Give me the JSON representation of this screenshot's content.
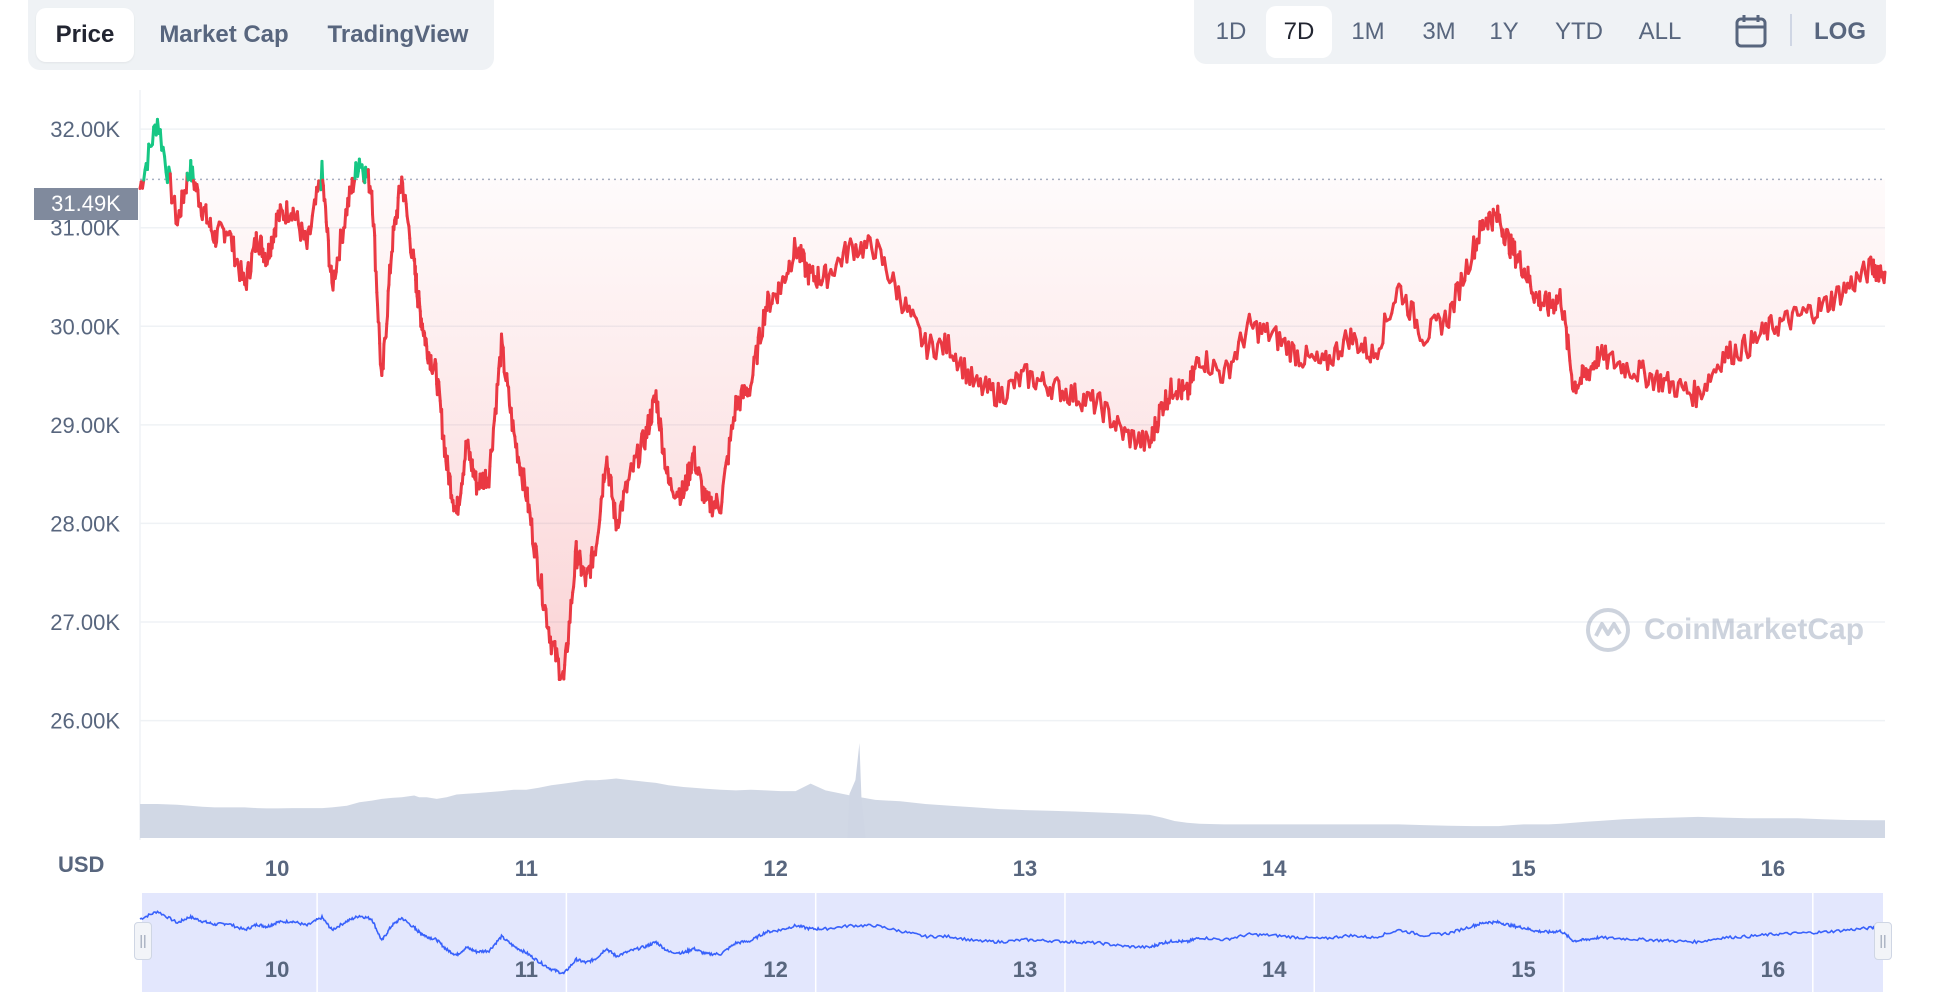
{
  "tabs": [
    {
      "label": "Price",
      "active": true
    },
    {
      "label": "Market Cap",
      "active": false
    },
    {
      "label": "TradingView",
      "active": false
    }
  ],
  "ranges": [
    {
      "label": "1D",
      "active": false
    },
    {
      "label": "7D",
      "active": true
    },
    {
      "label": "1M",
      "active": false
    },
    {
      "label": "3M",
      "active": false
    },
    {
      "label": "1Y",
      "active": false
    },
    {
      "label": "YTD",
      "active": false
    },
    {
      "label": "ALL",
      "active": false
    }
  ],
  "calendar_icon": "calendar-icon",
  "log_label": "LOG",
  "currency_label": "USD",
  "current_price_tag": "31.49K",
  "watermark": "CoinMarketCap",
  "colors": {
    "up": "#16c784",
    "down": "#ea3943",
    "volume": "#cfd6e4",
    "navigator_line": "#3861fb",
    "navigator_fill": "#e3e7fd",
    "tag_bg": "#808a9d"
  },
  "chart_data": {
    "type": "line",
    "title": "",
    "xlabel": "",
    "ylabel": "USD",
    "x_range": [
      9.45,
      16.45
    ],
    "ylim": [
      25600,
      32600
    ],
    "reference_price": 31490,
    "y_ticks": [
      "26.00K",
      "27.00K",
      "28.00K",
      "29.00K",
      "30.00K",
      "31.00K",
      "32.00K"
    ],
    "y_tick_values": [
      26000,
      27000,
      28000,
      29000,
      30000,
      31000,
      32000
    ],
    "x_ticks": [
      "10",
      "11",
      "12",
      "13",
      "14",
      "15",
      "16"
    ],
    "x_tick_values": [
      10,
      11,
      12,
      13,
      14,
      15,
      16
    ],
    "series": [
      {
        "x": [
          9.45,
          9.52,
          9.6,
          9.65,
          9.7,
          9.75,
          9.8,
          9.87,
          9.92,
          9.96,
          10.0,
          10.06,
          10.12,
          10.18,
          10.22,
          10.28,
          10.33,
          10.38,
          10.42,
          10.46,
          10.5,
          10.55,
          10.57,
          10.6,
          10.64,
          10.68,
          10.72,
          10.76,
          10.8,
          10.85,
          10.9,
          10.95,
          11.0,
          11.05,
          11.1,
          11.15,
          11.2,
          11.24,
          11.28,
          11.32,
          11.36,
          11.42,
          11.48,
          11.52,
          11.57,
          11.63,
          11.67,
          11.72,
          11.78,
          11.84,
          11.9,
          11.96,
          12.02,
          12.08,
          12.14,
          12.2,
          12.3,
          12.4,
          12.5,
          12.6,
          12.7,
          12.8,
          12.9,
          13.0,
          13.1,
          13.2,
          13.3,
          13.4,
          13.5,
          13.55,
          13.6,
          13.65,
          13.7,
          13.8,
          13.9,
          14.0,
          14.1,
          14.2,
          14.3,
          14.4,
          14.5,
          14.6,
          14.7,
          14.8,
          14.85,
          14.9,
          14.95,
          15.0,
          15.05,
          15.1,
          15.15,
          15.2,
          15.25,
          15.3,
          15.4,
          15.5,
          15.6,
          15.7,
          15.8,
          15.9,
          16.0,
          16.1,
          16.2,
          16.3,
          16.4,
          16.45
        ],
        "y": [
          31400,
          32100,
          31050,
          31600,
          31200,
          30900,
          31000,
          30400,
          30900,
          30700,
          31100,
          31200,
          30800,
          31550,
          30400,
          31200,
          31700,
          31400,
          29400,
          30800,
          31500,
          30600,
          30200,
          29800,
          29500,
          28600,
          28100,
          28800,
          28400,
          28500,
          29800,
          28900,
          28300,
          27500,
          26800,
          26400,
          27700,
          27400,
          27800,
          28700,
          28000,
          28500,
          28900,
          29300,
          28400,
          28300,
          28700,
          28200,
          28200,
          29200,
          29400,
          30200,
          30400,
          30800,
          30500,
          30500,
          30800,
          30800,
          30300,
          29800,
          29800,
          29400,
          29300,
          29500,
          29400,
          29300,
          29200,
          28900,
          28800,
          29200,
          29400,
          29300,
          29700,
          29500,
          30000,
          29900,
          29700,
          29600,
          29900,
          29700,
          30400,
          29900,
          30100,
          30800,
          31100,
          31100,
          30800,
          30600,
          30300,
          30200,
          30300,
          29400,
          29500,
          29700,
          29600,
          29500,
          29400,
          29300,
          29700,
          29800,
          30000,
          30100,
          30200,
          30400,
          30600,
          30550
        ],
        "volume": [
          1.0,
          1.0,
          0.98,
          0.95,
          0.92,
          0.9,
          0.9,
          0.9,
          0.88,
          0.87,
          0.87,
          0.88,
          0.88,
          0.88,
          0.9,
          0.95,
          1.05,
          1.1,
          1.15,
          1.18,
          1.2,
          1.25,
          1.2,
          1.2,
          1.15,
          1.2,
          1.28,
          1.3,
          1.32,
          1.35,
          1.38,
          1.42,
          1.42,
          1.48,
          1.55,
          1.6,
          1.65,
          1.7,
          1.7,
          1.72,
          1.75,
          1.7,
          1.65,
          1.62,
          1.55,
          1.5,
          1.48,
          1.45,
          1.42,
          1.4,
          1.42,
          1.4,
          1.38,
          1.38,
          1.6,
          1.4,
          1.25,
          1.12,
          1.08,
          1.0,
          0.95,
          0.9,
          0.85,
          0.82,
          0.8,
          0.78,
          0.75,
          0.72,
          0.68,
          0.6,
          0.5,
          0.45,
          0.42,
          0.4,
          0.4,
          0.4,
          0.4,
          0.4,
          0.4,
          0.4,
          0.4,
          0.38,
          0.36,
          0.35,
          0.35,
          0.35,
          0.38,
          0.4,
          0.4,
          0.4,
          0.42,
          0.45,
          0.48,
          0.5,
          0.55,
          0.58,
          0.6,
          0.62,
          0.6,
          0.58,
          0.58,
          0.58,
          0.55,
          0.53,
          0.52,
          0.52
        ]
      }
    ],
    "volume_unit": "relative",
    "navigator": {
      "x_ticks": [
        "10",
        "11",
        "12",
        "13",
        "14",
        "15",
        "16"
      ],
      "x_tick_values": [
        10,
        11,
        12,
        13,
        14,
        15,
        16
      ]
    },
    "grid": true,
    "legend": "none"
  }
}
